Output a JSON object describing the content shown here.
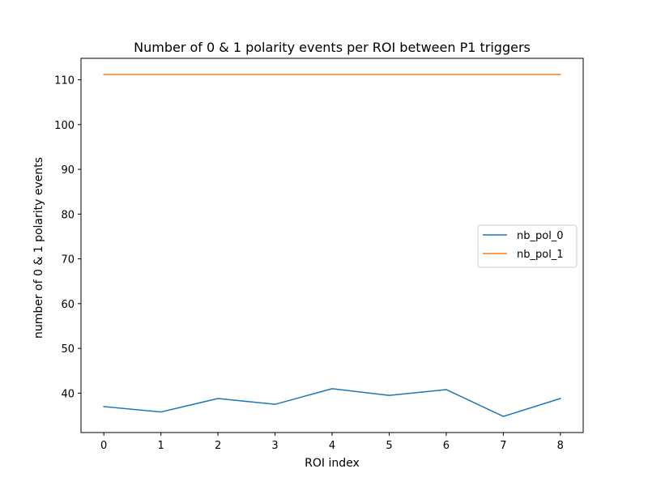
{
  "chart_data": {
    "type": "line",
    "title": "Number of 0 & 1 polarity events per ROI between P1 triggers",
    "xlabel": "ROI index",
    "ylabel": "number of 0 & 1 polarity events",
    "x": [
      0,
      1,
      2,
      3,
      4,
      5,
      6,
      7,
      8
    ],
    "xlim": [
      -0.4,
      8.4
    ],
    "ylim": [
      31.2,
      114.8
    ],
    "xticks": [
      "0",
      "1",
      "2",
      "3",
      "4",
      "5",
      "6",
      "7",
      "8"
    ],
    "yticks": [
      "40",
      "50",
      "60",
      "70",
      "80",
      "90",
      "100",
      "110"
    ],
    "grid": false,
    "legend_position": "center-right",
    "series": [
      {
        "name": "nb_pol_0",
        "color": "#1f77b4",
        "values": [
          37,
          35.8,
          38.8,
          37.5,
          41,
          39.5,
          40.8,
          34.8,
          38.8
        ]
      },
      {
        "name": "nb_pol_1",
        "color": "#ff7f0e",
        "values": [
          111.2,
          111.2,
          111.2,
          111.2,
          111.2,
          111.2,
          111.2,
          111.2,
          111.2
        ]
      }
    ]
  }
}
